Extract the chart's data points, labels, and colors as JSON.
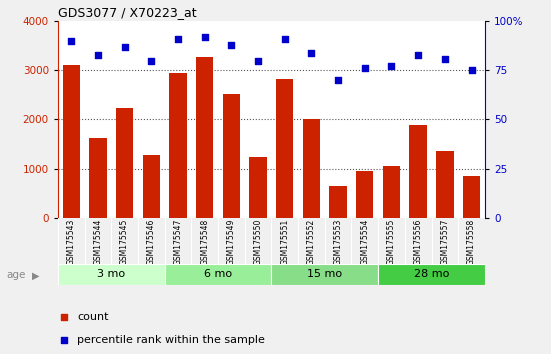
{
  "title": "GDS3077 / X70223_at",
  "samples": [
    "GSM175543",
    "GSM175544",
    "GSM175545",
    "GSM175546",
    "GSM175547",
    "GSM175548",
    "GSM175549",
    "GSM175550",
    "GSM175551",
    "GSM175552",
    "GSM175553",
    "GSM175554",
    "GSM175555",
    "GSM175556",
    "GSM175557",
    "GSM175558"
  ],
  "counts": [
    3100,
    1620,
    2230,
    1280,
    2950,
    3270,
    2510,
    1230,
    2830,
    2000,
    650,
    950,
    1050,
    1880,
    1350,
    840
  ],
  "percentiles": [
    90,
    83,
    87,
    80,
    91,
    92,
    88,
    80,
    91,
    84,
    70,
    76,
    77,
    83,
    81,
    75
  ],
  "bar_color": "#cc2200",
  "dot_color": "#0000cc",
  "ylim_left": [
    0,
    4000
  ],
  "ylim_right": [
    0,
    100
  ],
  "yticks_left": [
    0,
    1000,
    2000,
    3000,
    4000
  ],
  "yticks_right": [
    0,
    25,
    50,
    75,
    100
  ],
  "groups": [
    {
      "label": "3 mo",
      "start": 0,
      "end": 4,
      "color": "#ccffcc"
    },
    {
      "label": "6 mo",
      "start": 4,
      "end": 8,
      "color": "#99ee99"
    },
    {
      "label": "15 mo",
      "start": 8,
      "end": 12,
      "color": "#88dd88"
    },
    {
      "label": "28 mo",
      "start": 12,
      "end": 16,
      "color": "#44cc44"
    }
  ],
  "age_label": "age",
  "legend_count_label": "count",
  "legend_pct_label": "percentile rank within the sample",
  "bg_color": "#f0f0f0",
  "plot_bg": "#ffffff",
  "grid_color": "#888888",
  "ytick_right_labels": [
    "0",
    "25",
    "50",
    "75",
    "100%"
  ]
}
